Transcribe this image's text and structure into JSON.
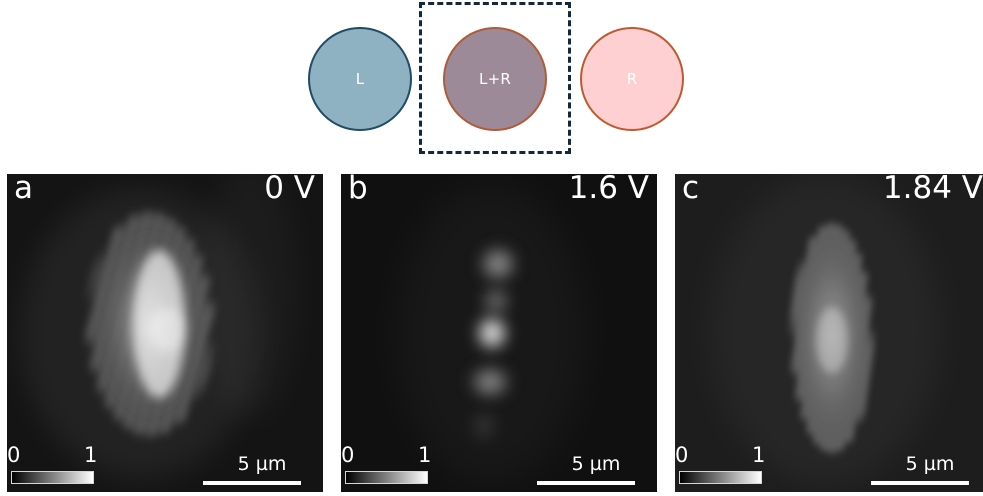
{
  "schematic": {
    "left_label": "L",
    "middle_label": "L+R",
    "right_label": "R"
  },
  "panels": [
    {
      "letter": "a",
      "voltage": "0 V",
      "colorbar_min": "0",
      "colorbar_max": "1",
      "scale_text": "5 µm"
    },
    {
      "letter": "b",
      "voltage": "1.6 V",
      "colorbar_min": "0",
      "colorbar_max": "1",
      "scale_text": "5 µm"
    },
    {
      "letter": "c",
      "voltage": "1.84 V",
      "colorbar_min": "0",
      "colorbar_max": "1",
      "scale_text": "5 µm"
    }
  ],
  "colors": {
    "left_circle_fill": "#8fb2c2",
    "middle_circle_fill": "#9d8a99",
    "right_circle_fill": "#ffd0d1",
    "dash_box": "#13283a",
    "panel_background": "#050505"
  }
}
